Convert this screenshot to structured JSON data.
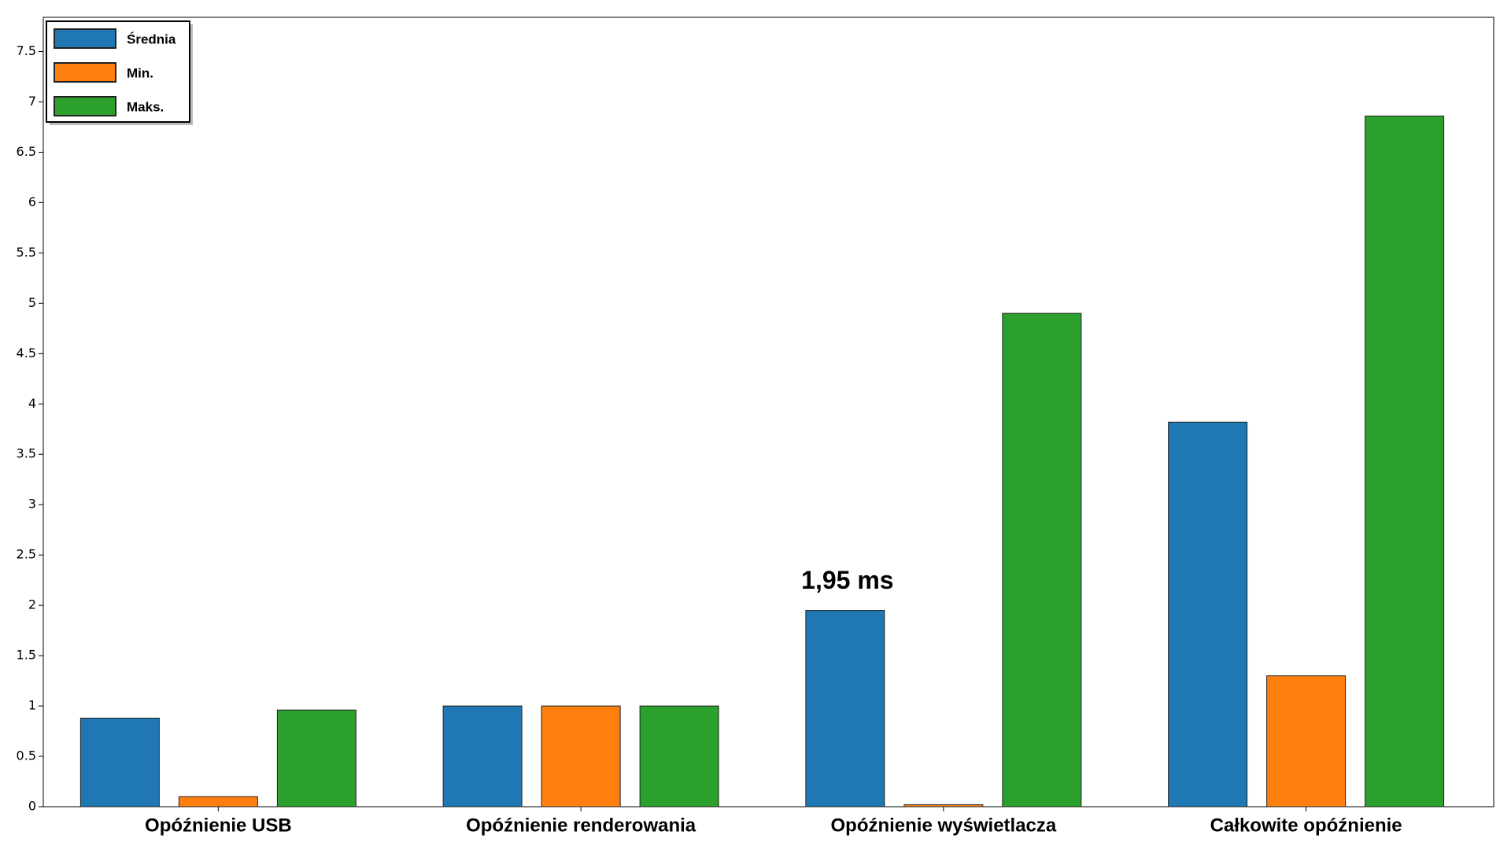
{
  "chart_data": {
    "type": "bar",
    "categories": [
      "Opóźnienie USB",
      "Opóźnienie renderowania",
      "Opóźnienie wyświetlacza",
      "Całkowite opóźnienie"
    ],
    "series": [
      {
        "name": "Średnia",
        "color": "#1f77b4",
        "values": [
          0.88,
          1,
          1.95,
          3.82
        ],
        "value_labels": [
          null,
          null,
          "1,95 ms",
          null
        ]
      },
      {
        "name": "Min.",
        "color": "#ff7f0e",
        "values": [
          0.1,
          1,
          0.02,
          1.3
        ]
      },
      {
        "name": "Maks.",
        "color": "#2ca02c",
        "values": [
          0.96,
          1,
          4.9,
          6.86
        ]
      }
    ],
    "ylim": [
      0,
      7.84
    ],
    "yticks": [
      0,
      0.5,
      1,
      1.5,
      2,
      2.5,
      3,
      3.5,
      4,
      4.5,
      5,
      5.5,
      6,
      6.5,
      7,
      7.5
    ],
    "legend": "upper-left"
  }
}
